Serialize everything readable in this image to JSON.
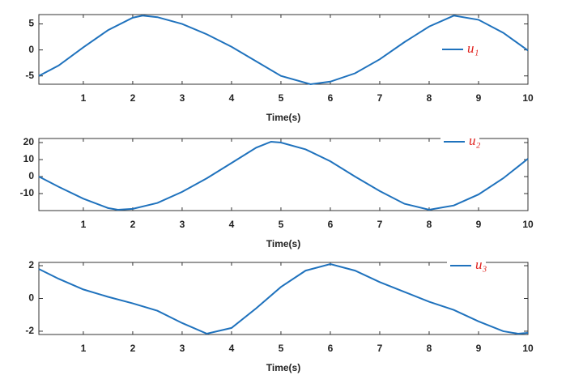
{
  "chart_data": [
    {
      "type": "line",
      "xlabel": "Time(s)",
      "xlim": [
        0.1,
        10
      ],
      "xticks": [
        1,
        2,
        3,
        4,
        5,
        6,
        7,
        8,
        9,
        10
      ],
      "ylim": [
        -6.6,
        6.8
      ],
      "yticks": [
        -5,
        0,
        5
      ],
      "legend": "east",
      "x": [
        0.1,
        0.5,
        1,
        1.5,
        2,
        2.2,
        2.5,
        3,
        3.5,
        4,
        4.5,
        5,
        5.6,
        6,
        6.5,
        7,
        7.5,
        8,
        8.5,
        9,
        9.5,
        10
      ],
      "series": [
        {
          "name": "u₁",
          "color": "#1f72bd",
          "values": [
            -5,
            -3,
            0.5,
            3.8,
            6.2,
            6.6,
            6.3,
            5,
            3,
            0.6,
            -2.2,
            -5,
            -6.6,
            -6.1,
            -4.5,
            -1.8,
            1.5,
            4.5,
            6.6,
            5.8,
            3.3,
            -0.1
          ]
        }
      ]
    },
    {
      "type": "line",
      "xlabel": "Time(s)",
      "xlim": [
        0.1,
        10
      ],
      "xticks": [
        1,
        2,
        3,
        4,
        5,
        6,
        7,
        8,
        9,
        10
      ],
      "ylim": [
        -20,
        22.4
      ],
      "yticks": [
        -10,
        0,
        10,
        20
      ],
      "legend": "northeast",
      "x": [
        0.1,
        0.5,
        1,
        1.5,
        1.7,
        2,
        2.5,
        3,
        3.5,
        4,
        4.5,
        4.8,
        5,
        5.5,
        6,
        6.5,
        7,
        7.5,
        8,
        8.5,
        9,
        9.5,
        10
      ],
      "series": [
        {
          "name": "u₂",
          "color": "#1f72bd",
          "values": [
            0,
            -6,
            -13,
            -18.5,
            -19.5,
            -19,
            -15.5,
            -9,
            -1,
            8,
            17,
            20.5,
            20,
            16,
            9,
            0,
            -8.5,
            -16,
            -19.5,
            -17,
            -10.5,
            -1,
            10.5
          ]
        }
      ]
    },
    {
      "type": "line",
      "xlabel": "Time(s)",
      "xlim": [
        0.1,
        10
      ],
      "xticks": [
        1,
        2,
        3,
        4,
        5,
        6,
        7,
        8,
        9,
        10
      ],
      "ylim": [
        -2.2,
        2.2
      ],
      "yticks": [
        -2,
        0,
        2
      ],
      "legend": "northeast",
      "x": [
        0.1,
        0.5,
        1,
        1.5,
        2,
        2.5,
        3,
        3.5,
        4,
        4.5,
        5,
        5.5,
        6,
        6.5,
        7,
        7.5,
        8,
        8.5,
        9,
        9.5,
        9.8,
        10
      ],
      "series": [
        {
          "name": "u₃",
          "color": "#1f72bd",
          "values": [
            1.8,
            1.2,
            0.55,
            0.1,
            -0.3,
            -0.75,
            -1.5,
            -2.15,
            -1.8,
            -0.6,
            0.7,
            1.7,
            2.1,
            1.7,
            1.0,
            0.4,
            -0.2,
            -0.7,
            -1.4,
            -2.0,
            -2.15,
            -2.1
          ]
        }
      ]
    }
  ]
}
